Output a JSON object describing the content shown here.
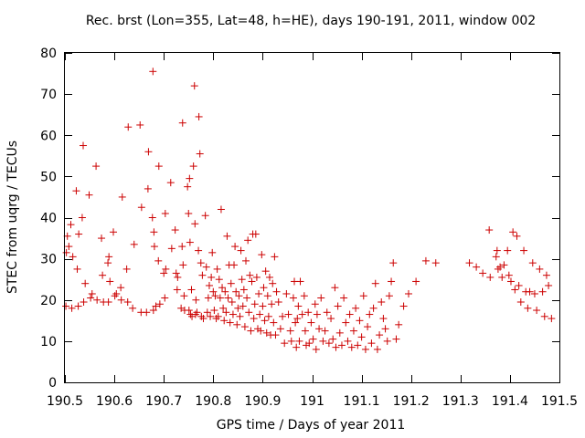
{
  "chart_data": {
    "type": "scatter",
    "title": "Rec. brst (Lon=355, Lat=48, h=HE), days 190-191, 2011, window 002",
    "xlabel": "GPS time / Days of year 2011",
    "ylabel": "STEC from uqrg / TECUs",
    "xlim": [
      190.5,
      191.5
    ],
    "ylim": [
      0,
      80
    ],
    "xticks": [
      190.5,
      190.6,
      190.7,
      190.8,
      190.9,
      191.0,
      191.1,
      191.2,
      191.3,
      191.4,
      191.5
    ],
    "xtick_labels": [
      "190.5",
      "190.6",
      "190.7",
      "190.8",
      "190.9",
      "191",
      "191.1",
      "191.2",
      "191.3",
      "191.4",
      "191.5"
    ],
    "yticks": [
      0,
      10,
      20,
      30,
      40,
      50,
      60,
      70,
      80
    ],
    "ytick_labels": [
      "0",
      "10",
      "20",
      "30",
      "40",
      "50",
      "60",
      "70",
      "80"
    ],
    "grid": false,
    "marker": "+",
    "color": "#cc0000",
    "series": [
      {
        "name": "STEC",
        "points": [
          [
            190.502,
            18.5
          ],
          [
            190.503,
            31.5
          ],
          [
            190.505,
            35.5
          ],
          [
            190.508,
            33.0
          ],
          [
            190.512,
            38.3
          ],
          [
            190.514,
            18.0
          ],
          [
            190.516,
            30.5
          ],
          [
            190.523,
            46.5
          ],
          [
            190.525,
            27.5
          ],
          [
            190.527,
            18.5
          ],
          [
            190.528,
            36.0
          ],
          [
            190.535,
            40.0
          ],
          [
            190.537,
            57.5
          ],
          [
            190.538,
            19.5
          ],
          [
            190.541,
            24.0
          ],
          [
            190.549,
            45.5
          ],
          [
            190.552,
            20.5
          ],
          [
            190.555,
            21.5
          ],
          [
            190.563,
            52.5
          ],
          [
            190.565,
            20.0
          ],
          [
            190.574,
            35.0
          ],
          [
            190.576,
            26.0
          ],
          [
            190.578,
            19.5
          ],
          [
            190.587,
            29.0
          ],
          [
            190.588,
            19.5
          ],
          [
            190.589,
            30.5
          ],
          [
            190.591,
            24.5
          ],
          [
            190.598,
            36.5
          ],
          [
            190.601,
            21.0
          ],
          [
            190.604,
            21.5
          ],
          [
            190.613,
            23.0
          ],
          [
            190.614,
            20.0
          ],
          [
            190.616,
            45.0
          ],
          [
            190.625,
            27.5
          ],
          [
            190.627,
            19.5
          ],
          [
            190.628,
            62.0
          ],
          [
            190.637,
            18.0
          ],
          [
            190.64,
            33.5
          ],
          [
            190.652,
            62.5
          ],
          [
            190.654,
            17.0
          ],
          [
            190.655,
            42.5
          ],
          [
            190.665,
            17.0
          ],
          [
            190.668,
            47.0
          ],
          [
            190.669,
            56.0
          ],
          [
            190.677,
            40.0
          ],
          [
            190.678,
            75.5
          ],
          [
            190.679,
            17.5
          ],
          [
            190.68,
            36.5
          ],
          [
            190.681,
            33.0
          ],
          [
            190.684,
            18.5
          ],
          [
            190.689,
            29.5
          ],
          [
            190.69,
            52.5
          ],
          [
            190.692,
            19.0
          ],
          [
            190.7,
            26.5
          ],
          [
            190.702,
            20.5
          ],
          [
            190.703,
            41.0
          ],
          [
            190.704,
            27.5
          ],
          [
            190.714,
            48.5
          ],
          [
            190.716,
            32.5
          ],
          [
            190.723,
            37.0
          ],
          [
            190.725,
            26.5
          ],
          [
            190.727,
            22.5
          ],
          [
            190.728,
            25.5
          ],
          [
            190.735,
            18.0
          ],
          [
            190.737,
            33.0
          ],
          [
            190.738,
            63.0
          ],
          [
            190.739,
            28.5
          ],
          [
            190.741,
            21.0
          ],
          [
            190.742,
            17.5
          ],
          [
            190.748,
            47.5
          ],
          [
            190.75,
            41.0
          ],
          [
            190.751,
            17.5
          ],
          [
            190.752,
            49.5
          ],
          [
            190.753,
            34.0
          ],
          [
            190.754,
            16.5
          ],
          [
            190.756,
            22.5
          ],
          [
            190.757,
            16.0
          ],
          [
            190.76,
            52.5
          ],
          [
            190.762,
            72.0
          ],
          [
            190.763,
            38.5
          ],
          [
            190.764,
            16.5
          ],
          [
            190.765,
            20.0
          ],
          [
            190.767,
            17.0
          ],
          [
            190.77,
            32.0
          ],
          [
            190.771,
            64.5
          ],
          [
            190.773,
            55.5
          ],
          [
            190.775,
            29.0
          ],
          [
            190.776,
            16.0
          ],
          [
            190.778,
            26.0
          ],
          [
            190.78,
            15.5
          ],
          [
            190.784,
            40.5
          ],
          [
            190.786,
            28.0
          ],
          [
            190.788,
            17.0
          ],
          [
            190.79,
            20.5
          ],
          [
            190.792,
            23.5
          ],
          [
            190.794,
            16.0
          ],
          [
            190.796,
            25.5
          ],
          [
            190.798,
            31.5
          ],
          [
            190.8,
            22.0
          ],
          [
            190.802,
            17.5
          ],
          [
            190.804,
            21.0
          ],
          [
            190.806,
            15.5
          ],
          [
            190.808,
            27.5
          ],
          [
            190.81,
            16.0
          ],
          [
            190.812,
            25.0
          ],
          [
            190.814,
            20.5
          ],
          [
            190.816,
            42.0
          ],
          [
            190.818,
            23.0
          ],
          [
            190.82,
            18.0
          ],
          [
            190.822,
            15.0
          ],
          [
            190.824,
            22.0
          ],
          [
            190.826,
            17.0
          ],
          [
            190.828,
            35.5
          ],
          [
            190.83,
            20.5
          ],
          [
            190.832,
            28.5
          ],
          [
            190.834,
            14.5
          ],
          [
            190.836,
            24.0
          ],
          [
            190.838,
            19.5
          ],
          [
            190.84,
            16.5
          ],
          [
            190.842,
            28.5
          ],
          [
            190.844,
            33.0
          ],
          [
            190.846,
            22.0
          ],
          [
            190.848,
            14.0
          ],
          [
            190.85,
            18.0
          ],
          [
            190.852,
            21.0
          ],
          [
            190.854,
            16.0
          ],
          [
            190.856,
            32.0
          ],
          [
            190.858,
            25.0
          ],
          [
            190.86,
            18.5
          ],
          [
            190.862,
            22.5
          ],
          [
            190.864,
            13.5
          ],
          [
            190.866,
            29.5
          ],
          [
            190.868,
            20.5
          ],
          [
            190.87,
            34.5
          ],
          [
            190.872,
            17.0
          ],
          [
            190.874,
            26.0
          ],
          [
            190.876,
            12.5
          ],
          [
            190.878,
            24.5
          ],
          [
            190.88,
            36.0
          ],
          [
            190.882,
            15.5
          ],
          [
            190.884,
            19.0
          ],
          [
            190.886,
            36.0
          ],
          [
            190.888,
            25.5
          ],
          [
            190.89,
            13.0
          ],
          [
            190.892,
            21.5
          ],
          [
            190.894,
            16.5
          ],
          [
            190.896,
            12.5
          ],
          [
            190.898,
            31.0
          ],
          [
            190.9,
            18.5
          ],
          [
            190.902,
            23.0
          ],
          [
            190.904,
            15.0
          ],
          [
            190.906,
            27.0
          ],
          [
            190.908,
            12.0
          ],
          [
            190.91,
            21.0
          ],
          [
            190.912,
            16.0
          ],
          [
            190.914,
            25.5
          ],
          [
            190.916,
            11.5
          ],
          [
            190.918,
            19.0
          ],
          [
            190.92,
            24.0
          ],
          [
            190.922,
            14.5
          ],
          [
            190.924,
            30.5
          ],
          [
            190.926,
            11.5
          ],
          [
            190.928,
            22.0
          ],
          [
            190.932,
            19.5
          ],
          [
            190.936,
            13.0
          ],
          [
            190.94,
            16.0
          ],
          [
            190.944,
            9.5
          ],
          [
            190.948,
            21.5
          ],
          [
            190.952,
            16.5
          ],
          [
            190.956,
            12.5
          ],
          [
            190.958,
            10.0
          ],
          [
            190.962,
            20.5
          ],
          [
            190.964,
            24.5
          ],
          [
            190.966,
            14.5
          ],
          [
            190.968,
            8.5
          ],
          [
            190.97,
            15.5
          ],
          [
            190.972,
            18.5
          ],
          [
            190.974,
            10.0
          ],
          [
            190.976,
            24.5
          ],
          [
            190.98,
            16.5
          ],
          [
            190.984,
            21.0
          ],
          [
            190.986,
            12.5
          ],
          [
            190.988,
            9.0
          ],
          [
            190.992,
            17.0
          ],
          [
            190.994,
            9.5
          ],
          [
            190.998,
            14.5
          ],
          [
            191.002,
            10.5
          ],
          [
            191.006,
            19.0
          ],
          [
            191.008,
            8.0
          ],
          [
            191.01,
            16.5
          ],
          [
            191.014,
            13.0
          ],
          [
            191.018,
            20.5
          ],
          [
            191.022,
            10.0
          ],
          [
            191.026,
            12.5
          ],
          [
            191.03,
            17.0
          ],
          [
            191.034,
            9.5
          ],
          [
            191.038,
            15.5
          ],
          [
            191.042,
            10.5
          ],
          [
            191.046,
            23.0
          ],
          [
            191.048,
            8.5
          ],
          [
            191.052,
            18.5
          ],
          [
            191.056,
            12.0
          ],
          [
            191.06,
            9.0
          ],
          [
            191.064,
            20.5
          ],
          [
            191.068,
            14.5
          ],
          [
            191.072,
            10.0
          ],
          [
            191.076,
            16.5
          ],
          [
            191.08,
            8.5
          ],
          [
            191.084,
            12.5
          ],
          [
            191.088,
            18.0
          ],
          [
            191.092,
            9.0
          ],
          [
            191.096,
            15.0
          ],
          [
            191.1,
            11.0
          ],
          [
            191.104,
            21.0
          ],
          [
            191.108,
            8.0
          ],
          [
            191.112,
            13.5
          ],
          [
            191.116,
            16.5
          ],
          [
            191.12,
            9.5
          ],
          [
            191.124,
            18.0
          ],
          [
            191.128,
            24.0
          ],
          [
            191.132,
            8.0
          ],
          [
            191.136,
            11.5
          ],
          [
            191.14,
            19.5
          ],
          [
            191.144,
            15.5
          ],
          [
            191.148,
            13.0
          ],
          [
            191.152,
            10.0
          ],
          [
            191.156,
            21.0
          ],
          [
            191.16,
            24.5
          ],
          [
            191.164,
            29.0
          ],
          [
            191.17,
            10.5
          ],
          [
            191.175,
            14.0
          ],
          [
            191.185,
            18.5
          ],
          [
            191.195,
            21.5
          ],
          [
            191.21,
            24.5
          ],
          [
            191.23,
            29.5
          ],
          [
            191.25,
            29.0
          ],
          [
            191.318,
            29.0
          ],
          [
            191.332,
            28.0
          ],
          [
            191.345,
            26.5
          ],
          [
            191.358,
            37.0
          ],
          [
            191.36,
            25.5
          ],
          [
            191.372,
            30.5
          ],
          [
            191.374,
            32.0
          ],
          [
            191.376,
            27.5
          ],
          [
            191.38,
            28.0
          ],
          [
            191.384,
            25.5
          ],
          [
            191.388,
            28.5
          ],
          [
            191.395,
            32.0
          ],
          [
            191.398,
            26.0
          ],
          [
            191.402,
            24.5
          ],
          [
            191.406,
            36.5
          ],
          [
            191.41,
            22.5
          ],
          [
            191.414,
            35.5
          ],
          [
            191.418,
            23.5
          ],
          [
            191.422,
            19.5
          ],
          [
            191.428,
            32.0
          ],
          [
            191.432,
            22.0
          ],
          [
            191.436,
            18.0
          ],
          [
            191.44,
            22.0
          ],
          [
            191.446,
            29.0
          ],
          [
            191.45,
            21.5
          ],
          [
            191.454,
            17.5
          ],
          [
            191.46,
            27.5
          ],
          [
            191.466,
            22.0
          ],
          [
            191.47,
            16.0
          ],
          [
            191.474,
            26.0
          ],
          [
            191.478,
            23.5
          ],
          [
            191.484,
            15.5
          ]
        ]
      }
    ]
  }
}
